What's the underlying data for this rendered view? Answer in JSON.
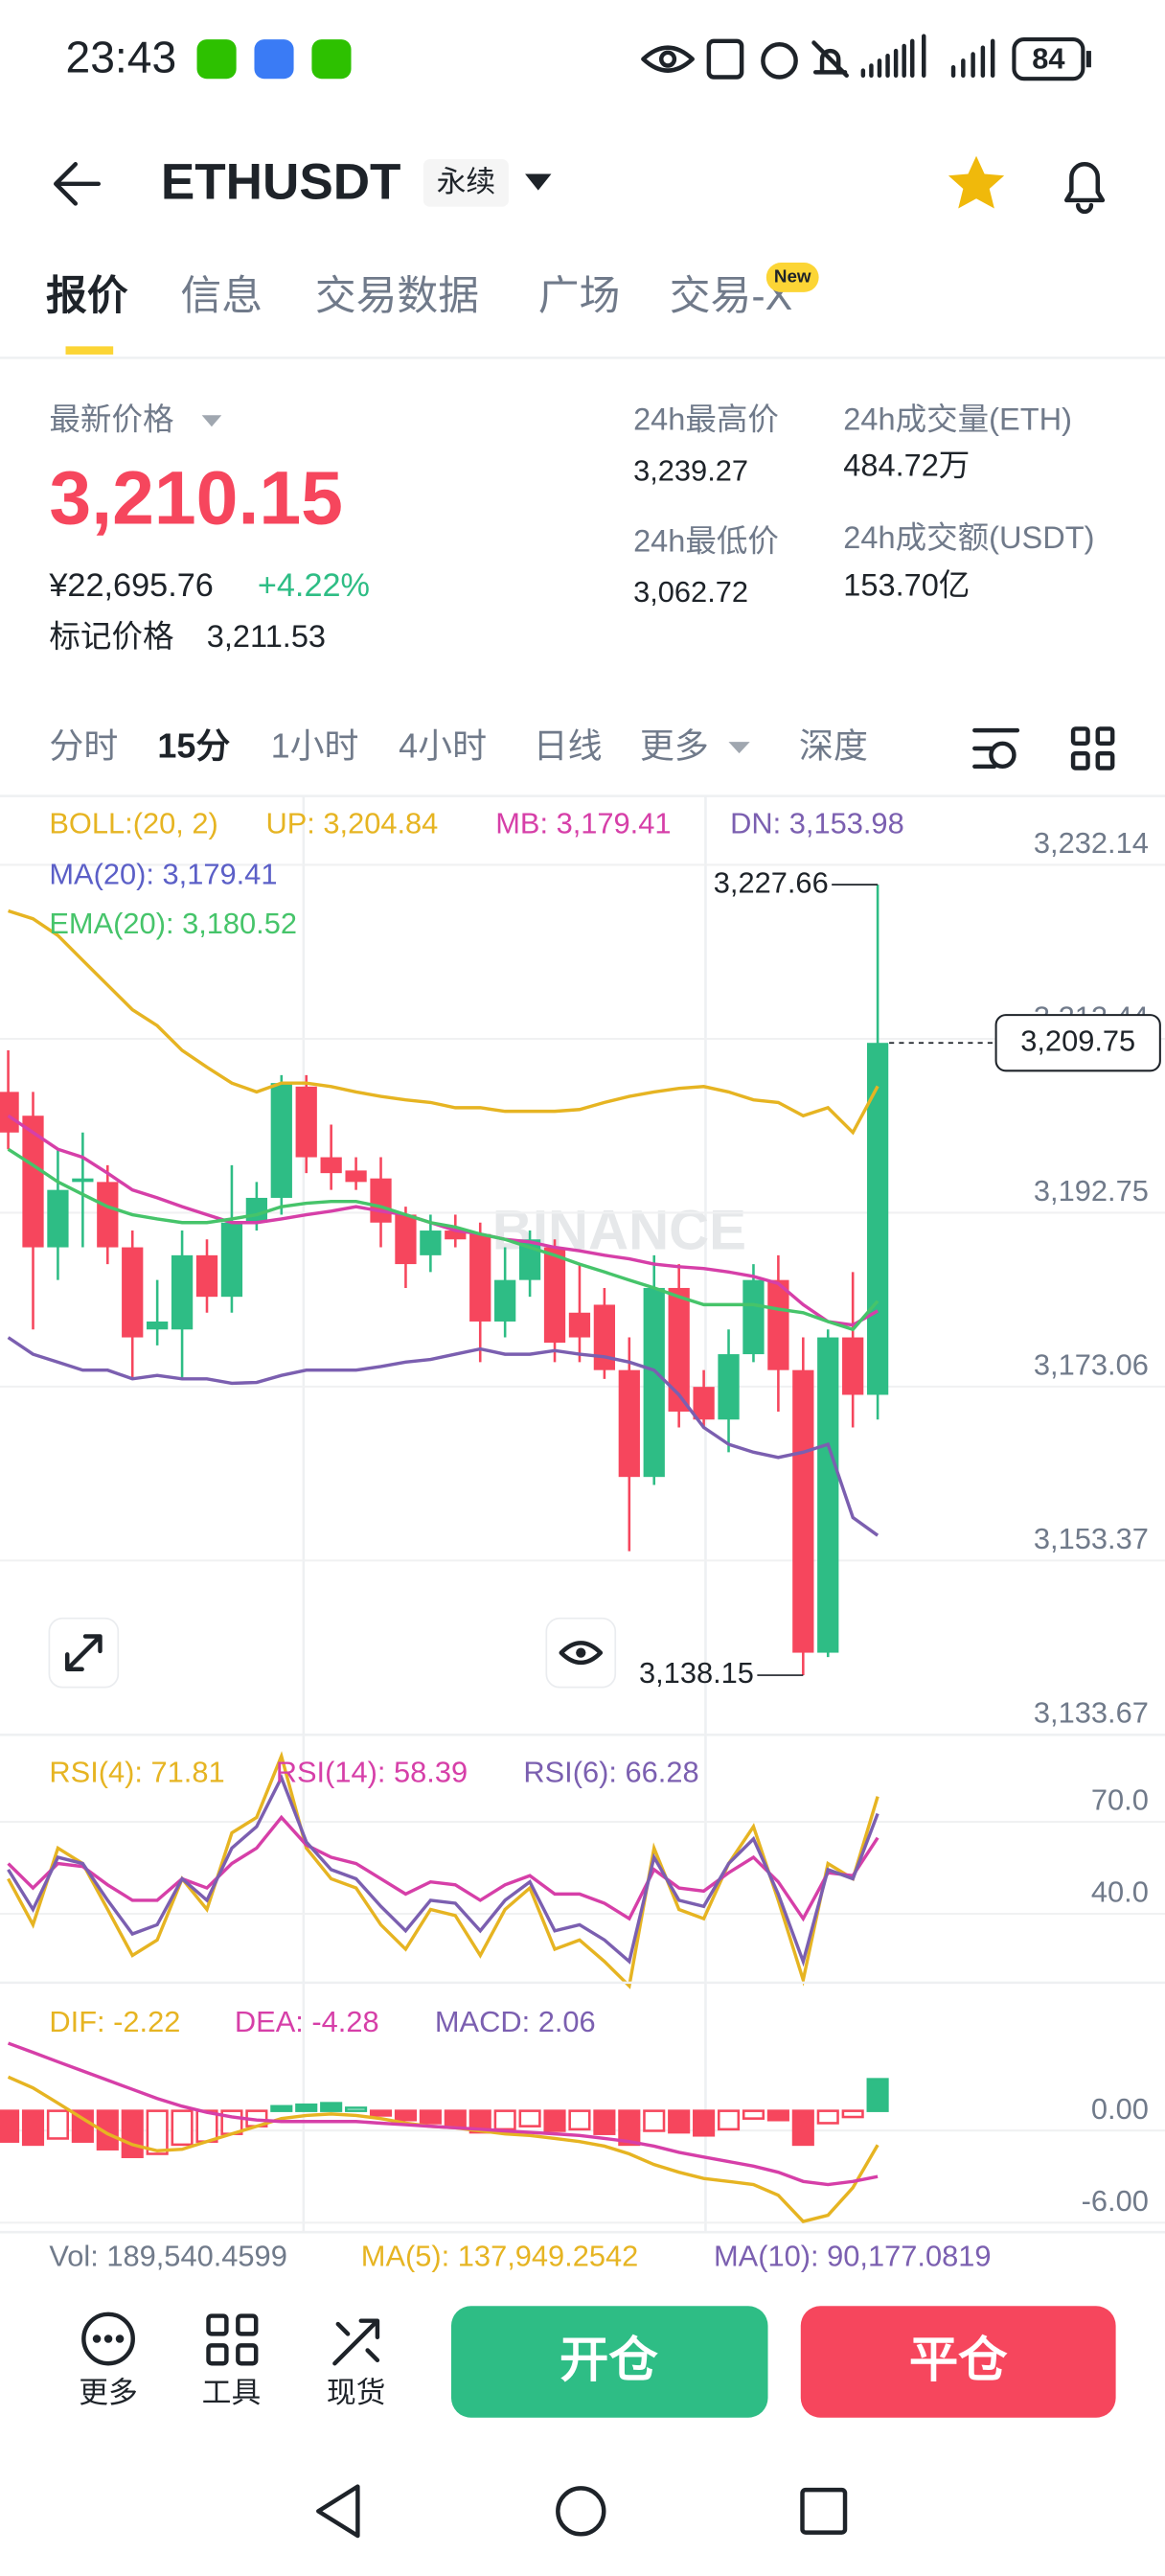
{
  "status": {
    "time": "23:43",
    "battery": "84"
  },
  "header": {
    "symbol": "ETHUSDT",
    "badge": "永续"
  },
  "tabs": [
    "报价",
    "信息",
    "交易数据",
    "广场",
    "交易-X"
  ],
  "new_badge": "New",
  "price": {
    "label": "最新价格",
    "last": "3,210.15",
    "cny": "¥22,695.76",
    "change": "+4.22%",
    "mark_label": "标记价格",
    "mark": "3,211.53"
  },
  "stats": [
    {
      "label": "24h最高价",
      "value": "3,239.27"
    },
    {
      "label": "24h成交量(ETH)",
      "value": "484.72万"
    },
    {
      "label": "24h最低价",
      "value": "3,062.72"
    },
    {
      "label": "24h成交额(USDT)",
      "value": "153.70亿"
    }
  ],
  "intervals": [
    "分时",
    "15分",
    "1小时",
    "4小时",
    "日线",
    "更多",
    "深度"
  ],
  "indicators": {
    "boll": "BOLL:(20, 2)",
    "up": "UP: 3,204.84",
    "mb": "MB: 3,179.41",
    "dn": "DN: 3,153.98",
    "ma": "MA(20): 3,179.41",
    "ema": "EMA(20): 3,180.52"
  },
  "rsi_legend": [
    "RSI(4): 71.81",
    "RSI(14): 58.39",
    "RSI(6): 66.28"
  ],
  "macd_legend": [
    "DIF: -2.22",
    "DEA: -4.28",
    "MACD: 2.06"
  ],
  "volume": [
    "Vol: 189,540.4599",
    "MA(5): 137,949.2542",
    "MA(10): 90,177.0819"
  ],
  "watermark": "BINANCE",
  "toolbar": [
    "更多",
    "工具",
    "现货"
  ],
  "buttons": [
    "开仓",
    "平仓"
  ],
  "chart_data": [
    {
      "type": "candlestick",
      "up_color": "#2ebd85",
      "down_color": "#f6465d",
      "ylim": [
        3131.4,
        3237.7
      ],
      "yticks": [
        {
          "value": 3232.14,
          "label": "3,232.14"
        },
        {
          "value": 3212.44,
          "label": "3,212.44"
        },
        {
          "value": 3192.75,
          "label": "3,192.75"
        },
        {
          "value": 3173.06,
          "label": "3,173.06"
        },
        {
          "value": 3153.37,
          "label": "3,153.37"
        },
        {
          "value": 3133.67,
          "label": "3,133.67"
        }
      ],
      "grid": true,
      "open": [
        3204.2,
        3201.5,
        3186.6,
        3194.0,
        3194.0,
        3186.6,
        3177.3,
        3177.3,
        3185.7,
        3181.0,
        3189.4,
        3192.2,
        3204.8,
        3196.8,
        3195.3,
        3194.4,
        3190.3,
        3185.7,
        3188.5,
        3188.1,
        3178.2,
        3182.9,
        3186.6,
        3179.2,
        3180.1,
        3172.7,
        3160.6,
        3182.0,
        3170.8,
        3167.1,
        3174.5,
        3182.9,
        3172.7,
        3140.7,
        3176.4,
        3169.9
      ],
      "high": [
        3208.9,
        3204.2,
        3197.7,
        3199.6,
        3195.9,
        3188.5,
        3182.9,
        3188.5,
        3187.5,
        3195.9,
        3194.0,
        3206.1,
        3206.1,
        3200.5,
        3196.8,
        3196.8,
        3191.2,
        3190.3,
        3190.3,
        3189.4,
        3186.6,
        3188.5,
        3187.5,
        3184.7,
        3182.0,
        3176.4,
        3185.7,
        3184.7,
        3172.7,
        3177.3,
        3184.7,
        3185.7,
        3176.4,
        3177.3,
        3183.8,
        3227.66
      ],
      "low": [
        3197.7,
        3177.3,
        3182.9,
        3186.6,
        3184.7,
        3171.7,
        3175.5,
        3171.7,
        3179.2,
        3179.2,
        3188.5,
        3190.3,
        3195.0,
        3193.1,
        3193.1,
        3186.6,
        3182.0,
        3183.8,
        3186.6,
        3173.6,
        3176.4,
        3181.0,
        3173.6,
        3173.6,
        3171.7,
        3152.2,
        3159.7,
        3166.2,
        3166.2,
        3163.4,
        3173.6,
        3168.0,
        3138.15,
        3140.2,
        3166.2,
        3167.1
      ],
      "close": [
        3199.6,
        3186.6,
        3193.1,
        3194.4,
        3186.6,
        3176.4,
        3178.2,
        3185.7,
        3181.0,
        3189.4,
        3192.2,
        3205.2,
        3196.8,
        3195.0,
        3194.0,
        3189.4,
        3184.7,
        3188.5,
        3187.5,
        3178.2,
        3182.9,
        3187.5,
        3175.8,
        3176.4,
        3172.7,
        3160.6,
        3182.0,
        3168.0,
        3167.1,
        3174.5,
        3182.9,
        3172.7,
        3140.7,
        3176.4,
        3169.9,
        3209.75
      ],
      "series": [
        {
          "color": "#e6b422",
          "values": [
            3224.7,
            3223.8,
            3221.9,
            3219.1,
            3216.3,
            3213.5,
            3211.7,
            3208.9,
            3207.0,
            3205.2,
            3204.2,
            3205.2,
            3205.2,
            3204.8,
            3204.2,
            3203.7,
            3203.3,
            3203.0,
            3202.4,
            3202.4,
            3202.0,
            3202.0,
            3202.0,
            3202.2,
            3203.0,
            3203.7,
            3204.2,
            3204.6,
            3204.8,
            3204.2,
            3203.3,
            3203.0,
            3201.5,
            3202.4,
            3199.6,
            3204.84
          ]
        },
        {
          "color": "#d63fa8",
          "values": [
            3201.5,
            3199.6,
            3197.7,
            3196.8,
            3195.0,
            3193.1,
            3192.2,
            3191.2,
            3190.3,
            3189.4,
            3189.4,
            3189.8,
            3190.3,
            3190.7,
            3191.2,
            3190.7,
            3190.3,
            3189.4,
            3188.5,
            3188.1,
            3187.5,
            3187.2,
            3186.6,
            3186.2,
            3185.7,
            3185.3,
            3184.7,
            3184.4,
            3184.2,
            3183.8,
            3183.3,
            3182.5,
            3180.1,
            3178.2,
            3177.8,
            3179.41
          ]
        },
        {
          "color": "#7b5fb0",
          "values": [
            3176.4,
            3174.5,
            3173.6,
            3172.7,
            3172.7,
            3171.7,
            3172.1,
            3171.7,
            3171.7,
            3171.2,
            3171.3,
            3172.1,
            3172.7,
            3172.7,
            3172.7,
            3173.1,
            3173.6,
            3173.9,
            3174.5,
            3175.1,
            3174.5,
            3174.5,
            3174.9,
            3174.5,
            3174.2,
            3173.6,
            3172.7,
            3169.9,
            3166.2,
            3164.3,
            3163.4,
            3162.8,
            3163.4,
            3164.3,
            3156.0,
            3153.98
          ]
        },
        {
          "color": "#46c46a",
          "values": [
            3197.7,
            3195.9,
            3194.0,
            3192.6,
            3191.2,
            3190.3,
            3189.8,
            3189.4,
            3189.4,
            3189.8,
            3190.3,
            3191.2,
            3191.6,
            3191.8,
            3191.8,
            3191.2,
            3190.3,
            3189.4,
            3188.9,
            3188.1,
            3187.5,
            3186.6,
            3185.7,
            3184.7,
            3183.8,
            3182.9,
            3182.0,
            3181.0,
            3180.1,
            3180.1,
            3180.1,
            3179.6,
            3179.2,
            3178.2,
            3177.3,
            3180.52
          ]
        }
      ],
      "annotations": [
        {
          "value": 3227.66,
          "label": "3,227.66"
        },
        {
          "value": 3138.15,
          "label": "3,138.15"
        }
      ],
      "last_price": {
        "value": 3209.75,
        "label": "3,209.75"
      }
    },
    {
      "type": "line",
      "ylim": [
        12.7,
        85
      ],
      "yticks": [
        {
          "value": 70,
          "label": "70.0"
        },
        {
          "value": 40,
          "label": "40.0"
        }
      ],
      "series": [
        {
          "color": "#e6b422",
          "values": [
            45,
            30,
            55,
            50,
            35,
            20,
            25,
            45,
            35,
            60,
            65,
            85,
            55,
            45,
            42,
            30,
            22,
            35,
            33,
            20,
            35,
            42,
            22,
            25,
            18,
            10,
            55,
            35,
            32,
            50,
            62,
            38,
            12,
            50,
            45,
            71.81
          ]
        },
        {
          "color": "#d63fa8",
          "values": [
            50,
            42,
            50,
            49,
            43,
            38,
            38,
            45,
            42,
            50,
            55,
            65,
            56,
            52,
            50,
            45,
            40,
            44,
            43,
            38,
            43,
            46,
            40,
            40,
            37,
            32,
            48,
            42,
            41,
            47,
            52,
            44,
            32,
            47,
            46,
            58.39
          ]
        },
        {
          "color": "#7b5fb0",
          "values": [
            48,
            35,
            52,
            50,
            38,
            27,
            30,
            45,
            38,
            55,
            62,
            78,
            57,
            48,
            45,
            36,
            28,
            38,
            37,
            28,
            38,
            44,
            28,
            30,
            25,
            18,
            52,
            38,
            36,
            50,
            58,
            40,
            18,
            48,
            45,
            66.28
          ]
        }
      ]
    },
    {
      "type": "combo",
      "up_color": "#2ebd85",
      "down_color": "#f6465d",
      "ylim": [
        -7.9,
        7.6
      ],
      "yticks": [
        {
          "value": 0,
          "label": "0.00"
        },
        {
          "value": -6,
          "label": "-6.00"
        }
      ],
      "histogram": [
        -2.0,
        -2.2,
        -1.8,
        -2.0,
        -2.5,
        -3.0,
        -2.8,
        -2.2,
        -2.0,
        -1.5,
        -1.0,
        0.3,
        0.4,
        0.5,
        0.2,
        -0.3,
        -0.6,
        -0.8,
        -1.0,
        -1.4,
        -1.2,
        -1.0,
        -1.3,
        -1.2,
        -1.5,
        -2.2,
        -1.3,
        -1.4,
        -1.6,
        -1.2,
        -0.5,
        -0.6,
        -2.2,
        -0.8,
        -0.4,
        2.06
      ],
      "series": [
        {
          "color": "#e6b422",
          "values": [
            2.2,
            1.5,
            0.5,
            -0.5,
            -1.5,
            -2.2,
            -2.6,
            -2.5,
            -2.0,
            -1.5,
            -1.0,
            -0.5,
            -0.3,
            -0.2,
            -0.3,
            -0.5,
            -0.8,
            -1.0,
            -1.1,
            -1.3,
            -1.5,
            -1.6,
            -1.8,
            -2.0,
            -2.3,
            -2.8,
            -3.5,
            -4.0,
            -4.4,
            -4.6,
            -4.8,
            -5.5,
            -7.2,
            -6.8,
            -5.0,
            -2.22
          ]
        },
        {
          "color": "#d63fa8",
          "values": [
            4.4,
            3.8,
            3.2,
            2.6,
            2.0,
            1.4,
            0.8,
            0.3,
            -0.1,
            -0.4,
            -0.6,
            -0.7,
            -0.7,
            -0.7,
            -0.7,
            -0.8,
            -0.9,
            -1.0,
            -1.1,
            -1.2,
            -1.3,
            -1.4,
            -1.5,
            -1.6,
            -1.8,
            -2.0,
            -2.3,
            -2.7,
            -3.0,
            -3.3,
            -3.6,
            -4.0,
            -4.6,
            -4.8,
            -4.6,
            -4.28
          ]
        }
      ]
    }
  ]
}
